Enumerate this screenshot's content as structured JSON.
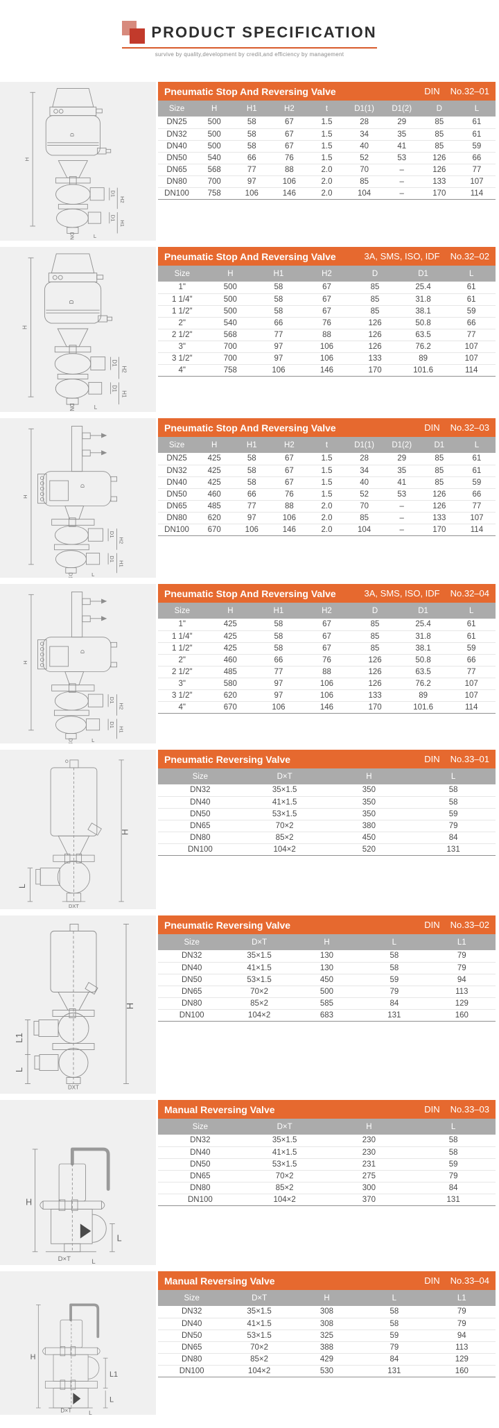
{
  "page": {
    "title": "PRODUCT SPECIFICATION",
    "tagline": "survive by quality,development by credit,and efficiency by management"
  },
  "colors": {
    "accent": "#e6692f",
    "header_gray": "#ababab",
    "panel_gray": "#f0f0f0"
  },
  "sections": [
    {
      "title": "Pneumatic Stop And Reversing Valve",
      "standard": "DIN",
      "number": "No.32–01",
      "columns": [
        "Size",
        "H",
        "H1",
        "H2",
        "t",
        "D1(1)",
        "D1(2)",
        "D",
        "L"
      ],
      "rows": [
        [
          "DN25",
          "500",
          "58",
          "67",
          "1.5",
          "28",
          "29",
          "85",
          "61"
        ],
        [
          "DN32",
          "500",
          "58",
          "67",
          "1.5",
          "34",
          "35",
          "85",
          "61"
        ],
        [
          "DN40",
          "500",
          "58",
          "67",
          "1.5",
          "40",
          "41",
          "85",
          "59"
        ],
        [
          "DN50",
          "540",
          "66",
          "76",
          "1.5",
          "52",
          "53",
          "126",
          "66"
        ],
        [
          "DN65",
          "568",
          "77",
          "88",
          "2.0",
          "70",
          "–",
          "126",
          "77"
        ],
        [
          "DN80",
          "700",
          "97",
          "106",
          "2.0",
          "85",
          "–",
          "133",
          "107"
        ],
        [
          "DN100",
          "758",
          "106",
          "146",
          "2.0",
          "104",
          "–",
          "170",
          "114"
        ]
      ],
      "group_starts": [
        3,
        6
      ],
      "diagram": {
        "h": "H",
        "d": "D",
        "d1a": "D1",
        "h2": "H2",
        "d1b": "D1",
        "h1": "H1",
        "dn": "DN",
        "l": "L"
      }
    },
    {
      "title": "Pneumatic Stop And Reversing Valve",
      "standard": "3A, SMS, ISO, IDF",
      "number": "No.32–02",
      "columns": [
        "Size",
        "H",
        "H1",
        "H2",
        "D",
        "D1",
        "L"
      ],
      "rows": [
        [
          "1\"",
          "500",
          "58",
          "67",
          "85",
          "25.4",
          "61"
        ],
        [
          "1 1/4\"",
          "500",
          "58",
          "67",
          "85",
          "31.8",
          "61"
        ],
        [
          "1 1/2\"",
          "500",
          "58",
          "67",
          "85",
          "38.1",
          "59"
        ],
        [
          "2\"",
          "540",
          "66",
          "76",
          "126",
          "50.8",
          "66"
        ],
        [
          "2 1/2\"",
          "568",
          "77",
          "88",
          "126",
          "63.5",
          "77"
        ],
        [
          "3\"",
          "700",
          "97",
          "106",
          "126",
          "76.2",
          "107"
        ],
        [
          "3 1/2\"",
          "700",
          "97",
          "106",
          "133",
          "89",
          "107"
        ],
        [
          "4\"",
          "758",
          "106",
          "146",
          "170",
          "101.6",
          "114"
        ]
      ],
      "group_starts": [
        3,
        6
      ],
      "diagram": {
        "h": "H",
        "d": "D",
        "d1a": "D1",
        "h2": "H2",
        "d1b": "D1",
        "h1": "H1",
        "dn": "DN",
        "l": "L"
      }
    },
    {
      "title": "Pneumatic Stop And Reversing Valve",
      "standard": "DIN",
      "number": "No.32–03",
      "columns": [
        "Size",
        "H",
        "H1",
        "H2",
        "t",
        "D1(1)",
        "D1(2)",
        "D1",
        "L"
      ],
      "rows": [
        [
          "DN25",
          "425",
          "58",
          "67",
          "1.5",
          "28",
          "29",
          "85",
          "61"
        ],
        [
          "DN32",
          "425",
          "58",
          "67",
          "1.5",
          "34",
          "35",
          "85",
          "61"
        ],
        [
          "DN40",
          "425",
          "58",
          "67",
          "1.5",
          "40",
          "41",
          "85",
          "59"
        ],
        [
          "DN50",
          "460",
          "66",
          "76",
          "1.5",
          "52",
          "53",
          "126",
          "66"
        ],
        [
          "DN65",
          "485",
          "77",
          "88",
          "2.0",
          "70",
          "–",
          "126",
          "77"
        ],
        [
          "DN80",
          "620",
          "97",
          "106",
          "2.0",
          "85",
          "–",
          "133",
          "107"
        ],
        [
          "DN100",
          "670",
          "106",
          "146",
          "2.0",
          "104",
          "–",
          "170",
          "114"
        ]
      ],
      "group_starts": [
        3,
        6
      ],
      "diagram": {
        "h": "H",
        "d": "D",
        "d1a": "D1",
        "h2": "H2",
        "d1b": "D1",
        "h1": "H1",
        "dn": "D1",
        "l": "L"
      }
    },
    {
      "title": "Pneumatic Stop And Reversing Valve",
      "standard": "3A, SMS, ISO, IDF",
      "number": "No.32–04",
      "columns": [
        "Size",
        "H",
        "H1",
        "H2",
        "D",
        "D1",
        "L"
      ],
      "rows": [
        [
          "1\"",
          "425",
          "58",
          "67",
          "85",
          "25.4",
          "61"
        ],
        [
          "1 1/4\"",
          "425",
          "58",
          "67",
          "85",
          "31.8",
          "61"
        ],
        [
          "1 1/2\"",
          "425",
          "58",
          "67",
          "85",
          "38.1",
          "59"
        ],
        [
          "2\"",
          "460",
          "66",
          "76",
          "126",
          "50.8",
          "66"
        ],
        [
          "2 1/2\"",
          "485",
          "77",
          "88",
          "126",
          "63.5",
          "77"
        ],
        [
          "3\"",
          "580",
          "97",
          "106",
          "126",
          "76.2",
          "107"
        ],
        [
          "3 1/2\"",
          "620",
          "97",
          "106",
          "133",
          "89",
          "107"
        ],
        [
          "4\"",
          "670",
          "106",
          "146",
          "170",
          "101.6",
          "114"
        ]
      ],
      "group_starts": [
        3,
        6
      ],
      "diagram": {
        "h": "H",
        "d": "D",
        "d1a": "D1",
        "h2": "H2",
        "d1b": "D1",
        "h1": "H1",
        "dn": "D1",
        "l": "L"
      }
    },
    {
      "title": "Pneumatic Reversing Valve",
      "standard": "DIN",
      "number": "No.33–01",
      "columns": [
        "Size",
        "D×T",
        "H",
        "L"
      ],
      "rows": [
        [
          "DN32",
          "35×1.5",
          "350",
          "58"
        ],
        [
          "DN40",
          "41×1.5",
          "350",
          "58"
        ],
        [
          "DN50",
          "53×1.5",
          "350",
          "59"
        ],
        [
          "DN65",
          "70×2",
          "380",
          "79"
        ],
        [
          "DN80",
          "85×2",
          "450",
          "84"
        ],
        [
          "DN100",
          "104×2",
          "520",
          "131"
        ]
      ],
      "group_starts": [
        3
      ],
      "diagram": {
        "h": "H",
        "l": "L",
        "dxt": "DXT"
      }
    },
    {
      "title": "Pneumatic Reversing Valve",
      "standard": "DIN",
      "number": "No.33–02",
      "columns": [
        "Size",
        "D×T",
        "H",
        "L",
        "L1"
      ],
      "rows": [
        [
          "DN32",
          "35×1.5",
          "130",
          "58",
          "79"
        ],
        [
          "DN40",
          "41×1.5",
          "130",
          "58",
          "79"
        ],
        [
          "DN50",
          "53×1.5",
          "450",
          "59",
          "94"
        ],
        [
          "DN65",
          "70×2",
          "500",
          "79",
          "113"
        ],
        [
          "DN80",
          "85×2",
          "585",
          "84",
          "129"
        ],
        [
          "DN100",
          "104×2",
          "683",
          "131",
          "160"
        ]
      ],
      "group_starts": [
        3
      ],
      "diagram": {
        "h": "H",
        "l1": "L1",
        "l": "L",
        "dxt": "DXT"
      }
    },
    {
      "title": "Manual Reversing Valve",
      "standard": "DIN",
      "number": "No.33–03",
      "columns": [
        "Size",
        "D×T",
        "H",
        "L"
      ],
      "rows": [
        [
          "DN32",
          "35×1.5",
          "230",
          "58"
        ],
        [
          "DN40",
          "41×1.5",
          "230",
          "58"
        ],
        [
          "DN50",
          "53×1.5",
          "231",
          "59"
        ],
        [
          "DN65",
          "70×2",
          "275",
          "79"
        ],
        [
          "DN80",
          "85×2",
          "300",
          "84"
        ],
        [
          "DN100",
          "104×2",
          "370",
          "131"
        ]
      ],
      "group_starts": [
        3
      ],
      "diagram": {
        "h": "H",
        "l": "L",
        "dxt": "D×T",
        "l2": "L"
      }
    },
    {
      "title": "Manual Reversing Valve",
      "standard": "DIN",
      "number": "No.33–04",
      "columns": [
        "Size",
        "D×T",
        "H",
        "L",
        "L1"
      ],
      "rows": [
        [
          "DN32",
          "35×1.5",
          "308",
          "58",
          "79"
        ],
        [
          "DN40",
          "41×1.5",
          "308",
          "58",
          "79"
        ],
        [
          "DN50",
          "53×1.5",
          "325",
          "59",
          "94"
        ],
        [
          "DN65",
          "70×2",
          "388",
          "79",
          "113"
        ],
        [
          "DN80",
          "85×2",
          "429",
          "84",
          "129"
        ],
        [
          "DN100",
          "104×2",
          "530",
          "131",
          "160"
        ]
      ],
      "group_starts": [
        3
      ],
      "diagram": {
        "h": "H",
        "l1": "L1",
        "l": "L",
        "dxt": "D×T",
        "l2": "L"
      }
    }
  ]
}
